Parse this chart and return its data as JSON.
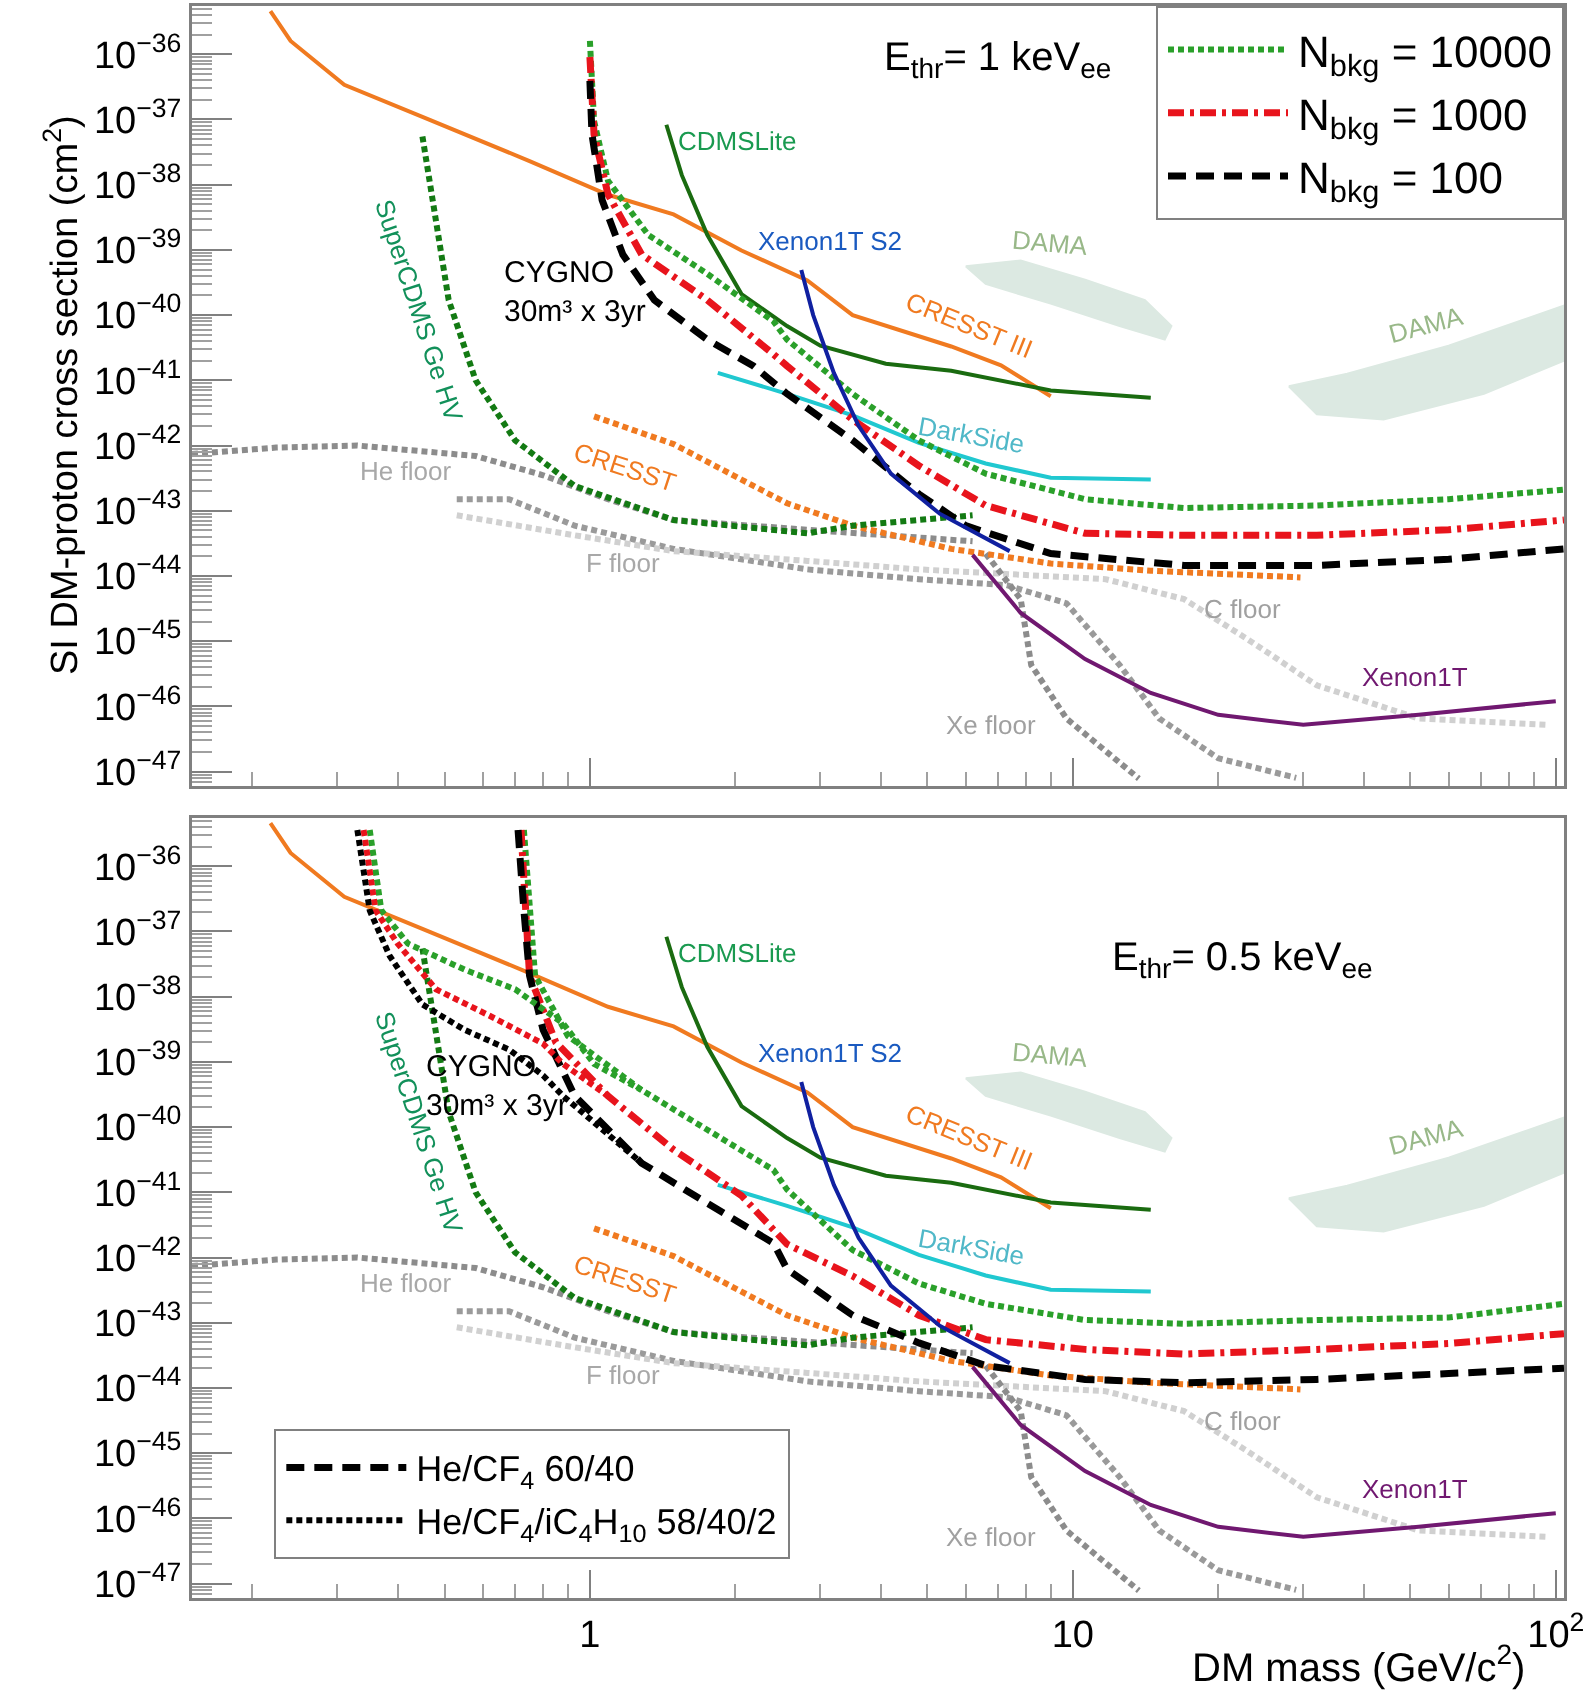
{
  "chart_data": [
    {
      "type": "line",
      "ylabel": "SI DM-proton cross section (cm$^{2}$)",
      "log": "xy",
      "legend": "top right",
      "tick_labels": "y",
      "xlim": [
        0.15,
        104
      ],
      "ylim": [
        6e-48,
        5.5e-36
      ],
      "xticks": [
        {
          "value": 1,
          "label": null
        },
        {
          "value": 10,
          "label": null
        },
        {
          "value": 100,
          "label": null
        }
      ],
      "yticks": [
        {
          "value": 1e-47,
          "label": "10$^{−47}$"
        },
        {
          "value": 1e-46,
          "label": "10$^{−46}$"
        },
        {
          "value": 1e-45,
          "label": "10$^{−45}$"
        },
        {
          "value": 1e-44,
          "label": "10$^{−44}$"
        },
        {
          "value": 1e-43,
          "label": "10$^{−43}$"
        },
        {
          "value": 1e-42,
          "label": "10$^{−42}$"
        },
        {
          "value": 1e-41,
          "label": "10$^{−41}$"
        },
        {
          "value": 1e-40,
          "label": "10$^{−40}$"
        },
        {
          "value": 1e-39,
          "label": "10$^{−39}$"
        },
        {
          "value": 1e-38,
          "label": "10$^{−38}$"
        },
        {
          "value": 1e-37,
          "label": "10$^{−37}$"
        },
        {
          "value": 1e-36,
          "label": "10$^{−36}$"
        }
      ],
      "annotations": [
        "E$_{thr}$= 1 keV$_{ee}$",
        "CYGNO\n30m³ x 3yr",
        "CDMSLite",
        "Xenon1T S2",
        "DAMA",
        "DAMA",
        "CRESST III",
        "DarkSide",
        "SuperCDMS Ge HV",
        "CRESST",
        "He floor",
        "F floor",
        "C floor",
        "Xe floor",
        "Xenon1T"
      ],
      "series": [
        {
          "type": "area",
          "color": "#dce9e2",
          "x": [
            6.0,
            7.8,
            10.6,
            14.1,
            16,
            15.5,
            12.5,
            9.0,
            6.6,
            6.0
          ],
          "values": [
            5.6e-40,
            6.9e-40,
            3.5e-40,
            1.7e-40,
            6.8e-41,
            4.2e-41,
            6.8e-41,
            1.5e-40,
            3e-40,
            5.6e-40
          ]
        },
        {
          "type": "area",
          "color": "#dce9e2",
          "x": [
            28,
            37,
            60,
            104,
            104,
            71,
            44,
            32,
            28
          ],
          "values": [
            8.1e-42,
            1.26e-41,
            3.4e-41,
            1.4e-40,
            2e-41,
            6.2e-42,
            2.5e-42,
            3e-42,
            8.1e-42
          ]
        },
        {
          "type": "line",
          "line_style": "dotted",
          "color": "#8c8c8c",
          "x": [
            0.15,
            0.224,
            0.33,
            0.58,
            0.8,
            1.09,
            1.49,
            2.82,
            6.2
          ],
          "values": [
            7.4e-43,
            9.3e-43,
            1e-42,
            6.9e-43,
            3.5e-43,
            1.5e-43,
            7.2e-44,
            5.1e-44,
            3.4e-44
          ]
        },
        {
          "type": "line",
          "line_style": "dotted",
          "color": "#9a9a9a",
          "x": [
            0.53,
            0.68,
            0.93,
            1.49,
            2.82,
            4.8,
            7.3,
            9.7,
            12.5,
            15.1,
            20,
            29
          ],
          "values": [
            1.5e-43,
            1.5e-43,
            5.9e-44,
            2.6e-44,
            1.26e-44,
            8.9e-45,
            7.2e-45,
            3.8e-45,
            4.3e-46,
            6.5e-47,
            1.6e-47,
            8e-48
          ]
        },
        {
          "type": "line",
          "line_style": "dotted",
          "color": "#d0d0d0",
          "x": [
            0.53,
            0.93,
            1.49,
            2.82,
            4.8,
            11.7,
            17,
            23,
            32,
            52,
            96
          ],
          "values": [
            8.5e-44,
            4.2e-44,
            2.4e-44,
            1.7e-44,
            1.26e-44,
            8.9e-45,
            4.4e-45,
            1.07e-45,
            2.1e-46,
            6.5e-47,
            5.2e-47
          ]
        },
        {
          "type": "line",
          "line_style": "dotted",
          "color": "#8c8c8c",
          "x": [
            6.6,
            7.8,
            8.2,
            9.7,
            13.7
          ],
          "values": [
            2.2e-44,
            4.4e-45,
            4.3e-46,
            6.5e-47,
            7.8e-48
          ]
        },
        {
          "type": "line",
          "line_style": "solid",
          "color": "#f07a20",
          "x": [
            0.218,
            0.24,
            0.31,
            0.45,
            0.75,
            1.09,
            1.49,
            2.06,
            2.82,
            3.5,
            5.6,
            7.1,
            9.0
          ],
          "values": [
            4.6e-36,
            1.6e-36,
            3.4e-37,
            1.1e-37,
            2.3e-38,
            7e-39,
            3.5e-39,
            9.8e-40,
            3.4e-40,
            1e-40,
            3.3e-41,
            1.7e-41,
            5.7e-42
          ]
        },
        {
          "type": "line",
          "line_style": "solid",
          "color": "#1a6b10",
          "x": [
            1.44,
            1.55,
            1.75,
            2.06,
            2.56,
            3.0,
            4.1,
            5.6,
            9.0,
            14.5
          ],
          "values": [
            8.3e-38,
            1.4e-38,
            1.7e-39,
            2.1e-40,
            6.8e-41,
            3.4e-41,
            1.8e-41,
            1.4e-41,
            7e-42,
            5.4e-42
          ]
        },
        {
          "type": "line",
          "line_style": "solid",
          "color": "#20c8d0",
          "x": [
            1.84,
            2.56,
            3.5,
            4.8,
            6.6,
            9.0,
            14.5
          ],
          "values": [
            1.3e-41,
            6.2e-42,
            2.9e-42,
            1.1e-42,
            5.3e-43,
            3.2e-43,
            3e-43
          ]
        },
        {
          "type": "line",
          "line_style": "dotted",
          "color": "#f07a20",
          "x": [
            1.02,
            1.49,
            2.06,
            2.56,
            3.5,
            5.6,
            9.0,
            14.5,
            29.6
          ],
          "values": [
            2.8e-42,
            1.05e-42,
            3e-43,
            1.3e-43,
            5.9e-44,
            2.6e-44,
            1.55e-44,
            1.2e-44,
            9.5e-45
          ]
        },
        {
          "type": "line",
          "line_style": "dotted",
          "color": "#137a13",
          "x": [
            0.45,
            0.48,
            0.51,
            0.58,
            0.7,
            0.93,
            1.49,
            2.82,
            3.5,
            6.2
          ],
          "values": [
            5.5e-38,
            2.8e-39,
            1.7e-40,
            1e-41,
            1.2e-42,
            2.4e-43,
            7.2e-44,
            4.5e-44,
            5.9e-44,
            8.5e-44
          ]
        },
        {
          "type": "line",
          "line_style": "solid",
          "color": "#701870",
          "x": [
            6.2,
            7.8,
            10.6,
            14.5,
            20,
            30,
            52,
            100
          ],
          "values": [
            2.1e-44,
            2.7e-45,
            5.3e-46,
            1.6e-46,
            7.4e-47,
            5.2e-47,
            7.4e-47,
            1.2e-46
          ]
        },
        {
          "type": "line",
          "line_style": "dotted",
          "name": "N$_{bkg}$ = 10000",
          "color": "#2aa02a",
          "x": [
            1.0,
            1.02,
            1.09,
            1.32,
            1.75,
            2.4,
            2.56,
            3.5,
            4.8,
            6.6,
            10.6,
            17,
            32,
            60,
            104
          ],
          "values": [
            1.6e-36,
            9.5e-38,
            1.15e-38,
            1.7e-39,
            4.3e-40,
            8e-41,
            4.2e-41,
            6.2e-42,
            1.2e-42,
            3.7e-43,
            1.5e-43,
            1.1e-43,
            1.2e-43,
            1.5e-43,
            2.1e-43
          ]
        },
        {
          "type": "line",
          "line_style": "dashdot",
          "name": "N$_{bkg}$ = 1000",
          "color": "#e8141c",
          "x": [
            1.0,
            1.02,
            1.09,
            1.28,
            1.75,
            2.4,
            2.56,
            3.5,
            4.8,
            6.6,
            10.6,
            17,
            32,
            60,
            104
          ],
          "values": [
            9.1e-37,
            5.9e-38,
            7.1e-39,
            8.5e-40,
            1.7e-40,
            2.5e-41,
            1.66e-41,
            2.5e-42,
            4.9e-43,
            1.2e-43,
            4.5e-44,
            4.2e-44,
            4.2e-44,
            5.1e-44,
            7.2e-44
          ]
        },
        {
          "type": "line",
          "line_style": "dashed",
          "name": "N$_{bkg}$ = 100",
          "color": "#000000",
          "x": [
            1.0,
            1.01,
            1.06,
            1.17,
            1.36,
            1.75,
            2.18,
            2.56,
            3.5,
            4.8,
            6.0,
            9.0,
            17,
            32,
            60,
            104
          ],
          "values": [
            3.9e-37,
            5.9e-38,
            5.8e-39,
            8.5e-40,
            1.7e-40,
            4.2e-41,
            1.66e-41,
            6.2e-42,
            1.2e-42,
            1.8e-43,
            5.9e-44,
            2.2e-44,
            1.45e-44,
            1.45e-44,
            1.8e-44,
            2.6e-44
          ]
        },
        {
          "type": "line",
          "line_style": "solid",
          "color": "#1020a0",
          "x": [
            2.74,
            2.9,
            3.2,
            3.6,
            4.2,
            5.3,
            7.4
          ],
          "values": [
            4.9e-40,
            1e-40,
            1.3e-41,
            2e-42,
            3.7e-43,
            9e-44,
            2.4e-44
          ]
        }
      ]
    },
    {
      "type": "line",
      "xlabel": "DM mass (GeV/c$^{2}$)",
      "log": "xy",
      "legend": "bottom left",
      "xlim": [
        0.15,
        104
      ],
      "ylim": [
        6e-48,
        5.5e-36
      ],
      "xticks": [
        1,
        10,
        {
          "value": 100,
          "label": "10$^{2}$"
        }
      ],
      "yticks": [
        {
          "value": 1e-47,
          "label": "10$^{−47}$"
        },
        {
          "value": 1e-46,
          "label": "10$^{−46}$"
        },
        {
          "value": 1e-45,
          "label": "10$^{−45}$"
        },
        {
          "value": 1e-44,
          "label": "10$^{−44}$"
        },
        {
          "value": 1e-43,
          "label": "10$^{−43}$"
        },
        {
          "value": 1e-42,
          "label": "10$^{−42}$"
        },
        {
          "value": 1e-41,
          "label": "10$^{−41}$"
        },
        {
          "value": 1e-40,
          "label": "10$^{−40}$"
        },
        {
          "value": 1e-39,
          "label": "10$^{−39}$"
        },
        {
          "value": 1e-38,
          "label": "10$^{−38}$"
        },
        {
          "value": 1e-37,
          "label": "10$^{−37}$"
        },
        {
          "value": 1e-36,
          "label": "10$^{−36}$"
        }
      ],
      "annotations": [
        "E$_{thr}$= 0.5 keV$_{ee}$",
        "CYGNO\n30m³ x 3yr",
        "CDMSLite",
        "Xenon1T S2",
        "DAMA",
        "DAMA",
        "CRESST III",
        "DarkSide",
        "SuperCDMS Ge HV",
        "CRESST",
        "He floor",
        "F floor",
        "C floor",
        "Xe floor",
        "Xenon1T"
      ],
      "series": [
        {
          "type": "area",
          "color": "#dce9e2",
          "x": [
            6.0,
            7.8,
            10.6,
            14.1,
            16,
            15.5,
            12.5,
            9.0,
            6.6,
            6.0
          ],
          "values": [
            5.6e-40,
            6.9e-40,
            3.5e-40,
            1.7e-40,
            6.8e-41,
            4.2e-41,
            6.8e-41,
            1.5e-40,
            3e-40,
            5.6e-40
          ]
        },
        {
          "type": "area",
          "color": "#dce9e2",
          "x": [
            28,
            37,
            60,
            104,
            104,
            71,
            44,
            32,
            28
          ],
          "values": [
            8.1e-42,
            1.26e-41,
            3.4e-41,
            1.4e-40,
            2e-41,
            6.2e-42,
            2.5e-42,
            3e-42,
            8.1e-42
          ]
        },
        {
          "type": "line",
          "line_style": "dotted",
          "color": "#8c8c8c",
          "x": [
            0.15,
            0.224,
            0.33,
            0.58,
            0.8,
            1.09,
            1.49,
            2.82,
            6.2
          ],
          "values": [
            7.4e-43,
            9.3e-43,
            1e-42,
            6.9e-43,
            3.5e-43,
            1.5e-43,
            7.2e-44,
            5.1e-44,
            3.4e-44
          ]
        },
        {
          "type": "line",
          "line_style": "dotted",
          "color": "#9a9a9a",
          "x": [
            0.53,
            0.68,
            0.93,
            1.49,
            2.82,
            4.8,
            7.3,
            9.7,
            12.5,
            15.1,
            20,
            29
          ],
          "values": [
            1.5e-43,
            1.5e-43,
            5.9e-44,
            2.6e-44,
            1.26e-44,
            8.9e-45,
            7.2e-45,
            3.8e-45,
            4.3e-46,
            6.5e-47,
            1.6e-47,
            8e-48
          ]
        },
        {
          "type": "line",
          "line_style": "dotted",
          "color": "#d0d0d0",
          "x": [
            0.53,
            0.93,
            1.49,
            2.82,
            4.8,
            11.7,
            17,
            23,
            32,
            52,
            96
          ],
          "values": [
            8.5e-44,
            4.2e-44,
            2.4e-44,
            1.7e-44,
            1.26e-44,
            8.9e-45,
            4.4e-45,
            1.07e-45,
            2.1e-46,
            6.5e-47,
            5.2e-47
          ]
        },
        {
          "type": "line",
          "line_style": "dotted",
          "color": "#8c8c8c",
          "x": [
            6.6,
            7.8,
            8.2,
            9.7,
            13.7
          ],
          "values": [
            2.2e-44,
            4.4e-45,
            4.3e-46,
            6.5e-47,
            7.8e-48
          ]
        },
        {
          "type": "line",
          "line_style": "solid",
          "color": "#f07a20",
          "x": [
            0.218,
            0.24,
            0.31,
            0.45,
            0.75,
            1.09,
            1.49,
            2.06,
            2.82,
            3.5,
            5.6,
            7.1,
            9.0
          ],
          "values": [
            4.6e-36,
            1.6e-36,
            3.4e-37,
            1.1e-37,
            2.3e-38,
            7e-39,
            3.5e-39,
            9.8e-40,
            3.4e-40,
            1e-40,
            3.3e-41,
            1.7e-41,
            5.7e-42
          ]
        },
        {
          "type": "line",
          "line_style": "solid",
          "color": "#1a6b10",
          "x": [
            1.44,
            1.55,
            1.75,
            2.06,
            2.56,
            3.0,
            4.1,
            5.6,
            9.0,
            14.5
          ],
          "values": [
            8.3e-38,
            1.4e-38,
            1.7e-39,
            2.1e-40,
            6.8e-41,
            3.4e-41,
            1.8e-41,
            1.4e-41,
            7e-42,
            5.4e-42
          ]
        },
        {
          "type": "line",
          "line_style": "solid",
          "color": "#20c8d0",
          "x": [
            1.84,
            2.56,
            3.5,
            4.8,
            6.6,
            9.0,
            14.5
          ],
          "values": [
            1.3e-41,
            6.2e-42,
            2.9e-42,
            1.1e-42,
            5.3e-43,
            3.2e-43,
            3e-43
          ]
        },
        {
          "type": "line",
          "line_style": "dotted",
          "color": "#f07a20",
          "x": [
            1.02,
            1.49,
            2.06,
            2.56,
            3.5,
            5.6,
            9.0,
            14.5,
            29.6
          ],
          "values": [
            2.8e-42,
            1.05e-42,
            3e-43,
            1.3e-43,
            5.9e-44,
            2.6e-44,
            1.55e-44,
            1.2e-44,
            9.5e-45
          ]
        },
        {
          "type": "line",
          "line_style": "dotted",
          "color": "#137a13",
          "x": [
            0.45,
            0.48,
            0.51,
            0.58,
            0.7,
            0.93,
            1.49,
            2.82,
            3.5,
            6.2
          ],
          "values": [
            5.5e-38,
            2.8e-39,
            1.7e-40,
            1e-41,
            1.2e-42,
            2.4e-43,
            7.2e-44,
            4.5e-44,
            5.9e-44,
            8.5e-44
          ]
        },
        {
          "type": "line",
          "line_style": "solid",
          "color": "#701870",
          "x": [
            6.2,
            7.8,
            10.6,
            14.5,
            20,
            30,
            52,
            100
          ],
          "values": [
            2.1e-44,
            2.7e-45,
            5.3e-46,
            1.6e-46,
            7.4e-47,
            5.2e-47,
            7.4e-47,
            1.2e-46
          ]
        },
        {
          "type": "line",
          "line_style": "dotted",
          "color": "#2aa02a",
          "x": [
            0.73,
            0.77,
            0.9,
            1.28,
            1.75,
            2.4,
            2.56,
            3.5,
            4.8,
            6.6,
            10.6,
            17,
            32,
            60,
            104
          ],
          "values": [
            3.6e-36,
            2.1e-38,
            2.5e-39,
            3.7e-40,
            9.1e-41,
            2.2e-41,
            1.1e-41,
            1.3e-42,
            4e-43,
            1.95e-43,
            1.1e-43,
            9.6e-44,
            1.1e-43,
            1.2e-43,
            1.95e-43
          ]
        },
        {
          "type": "line",
          "line_style": "dashdot",
          "color": "#e8141c",
          "x": [
            0.72,
            0.75,
            0.85,
            1.09,
            1.49,
            2.06,
            2.56,
            3.5,
            4.8,
            6.6,
            10.6,
            17,
            32,
            60,
            104
          ],
          "values": [
            3.6e-36,
            2.1e-38,
            2e-39,
            3e-40,
            4.5e-41,
            8.9e-42,
            1.6e-42,
            5.2e-43,
            1.3e-43,
            5.5e-44,
            3.9e-44,
            3.3e-44,
            3.9e-44,
            4.8e-44,
            6.8e-44
          ]
        },
        {
          "type": "line",
          "line_style": "dashed",
          "name": "He/CF$_{4}$ 60/40",
          "color": "#000000",
          "x": [
            0.71,
            0.73,
            0.75,
            0.8,
            0.93,
            1.28,
            1.75,
            2.4,
            2.56,
            3.5,
            4.8,
            6.6,
            10.6,
            17,
            32,
            60,
            104
          ],
          "values": [
            3.6e-36,
            2.1e-37,
            2.1e-38,
            3.1e-39,
            3e-40,
            2.8e-41,
            6.8e-42,
            1.66e-42,
            6.6e-43,
            1.3e-43,
            4.9e-44,
            2.2e-44,
            1.35e-44,
            1.2e-44,
            1.35e-44,
            1.66e-44,
            2e-44
          ]
        },
        {
          "type": "line",
          "line_style": "dotted",
          "color": "#2aa02a",
          "x": [
            0.35,
            0.37,
            0.42,
            0.55,
            0.7,
            0.88,
            1.02,
            1.28
          ],
          "values": [
            3.6e-36,
            2.1e-37,
            6.5e-38,
            2.6e-38,
            1.3e-38,
            3.9e-39,
            9.3e-40,
            3.7e-40
          ]
        },
        {
          "type": "line",
          "line_style": "dotted",
          "color": "#e8141c",
          "x": [
            0.34,
            0.36,
            0.4,
            0.48,
            0.62,
            0.8,
            0.88,
            1.09
          ],
          "values": [
            3.6e-36,
            2.1e-37,
            6.5e-38,
            1.3e-38,
            5.1e-39,
            1.9e-39,
            9.3e-40,
            3e-40
          ]
        },
        {
          "type": "line",
          "line_style": "dotted",
          "name": "He/CF$_{4}$/iC$_{4}$H$_{10}$ 58/40/2",
          "color": "#000000",
          "x": [
            0.33,
            0.35,
            0.385,
            0.45,
            0.55,
            0.68,
            0.8,
            0.88,
            1.28
          ],
          "values": [
            3.6e-36,
            2.1e-37,
            4.2e-38,
            7.6e-39,
            3.1e-39,
            1.55e-39,
            6.2e-40,
            3e-40,
            2.8e-41
          ]
        },
        {
          "type": "line",
          "line_style": "solid",
          "color": "#1020a0",
          "x": [
            2.74,
            2.9,
            3.2,
            3.6,
            4.2,
            5.3,
            7.4
          ],
          "values": [
            4.9e-40,
            1e-40,
            1.3e-41,
            2e-42,
            3.7e-43,
            9e-44,
            2.4e-44
          ]
        }
      ]
    }
  ]
}
